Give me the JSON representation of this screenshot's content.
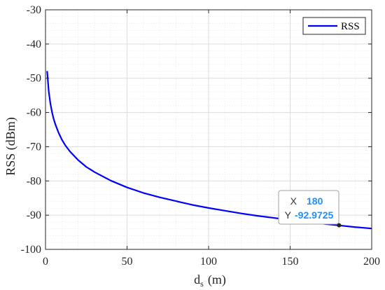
{
  "chart_data": {
    "type": "line",
    "title": "",
    "xlabel_main": "d",
    "xlabel_sub": "s",
    "xlabel_unit": "(m)",
    "ylabel": "RSS (dBm)",
    "xlim": [
      0,
      200
    ],
    "ylim": [
      -100,
      -30
    ],
    "xticks": [
      0,
      50,
      100,
      150,
      200
    ],
    "yticks": [
      -100,
      -90,
      -80,
      -70,
      -60,
      -50,
      -40,
      -30
    ],
    "grid": true,
    "minor_grid": true,
    "legend_position": "top-right",
    "series": [
      {
        "name": "RSS",
        "color": "#0000ff",
        "x": [
          1,
          2,
          3,
          4,
          5,
          6,
          8,
          10,
          12,
          15,
          20,
          25,
          30,
          40,
          50,
          60,
          70,
          80,
          90,
          100,
          110,
          120,
          130,
          140,
          150,
          160,
          170,
          180,
          190,
          200
        ],
        "y": [
          -47.9,
          -53.9,
          -57.4,
          -59.9,
          -61.9,
          -63.4,
          -65.9,
          -67.9,
          -69.5,
          -71.4,
          -73.9,
          -75.9,
          -77.4,
          -79.9,
          -81.9,
          -83.5,
          -84.8,
          -85.9,
          -87.0,
          -87.9,
          -88.7,
          -89.5,
          -90.2,
          -90.8,
          -91.4,
          -92.0,
          -92.5,
          -93.0,
          -93.5,
          -93.9
        ]
      }
    ],
    "datatip": {
      "x_label": "X",
      "x_value": "180",
      "y_label": "Y",
      "y_value": "-92.9725",
      "x": 180,
      "y": -92.9725
    }
  },
  "colors": {
    "axis": "#262626",
    "grid_major": "#dcdcdc",
    "grid_minor": "#ededed",
    "tip_value": "#1e90ff",
    "tip_border": "#a0a0a0"
  }
}
